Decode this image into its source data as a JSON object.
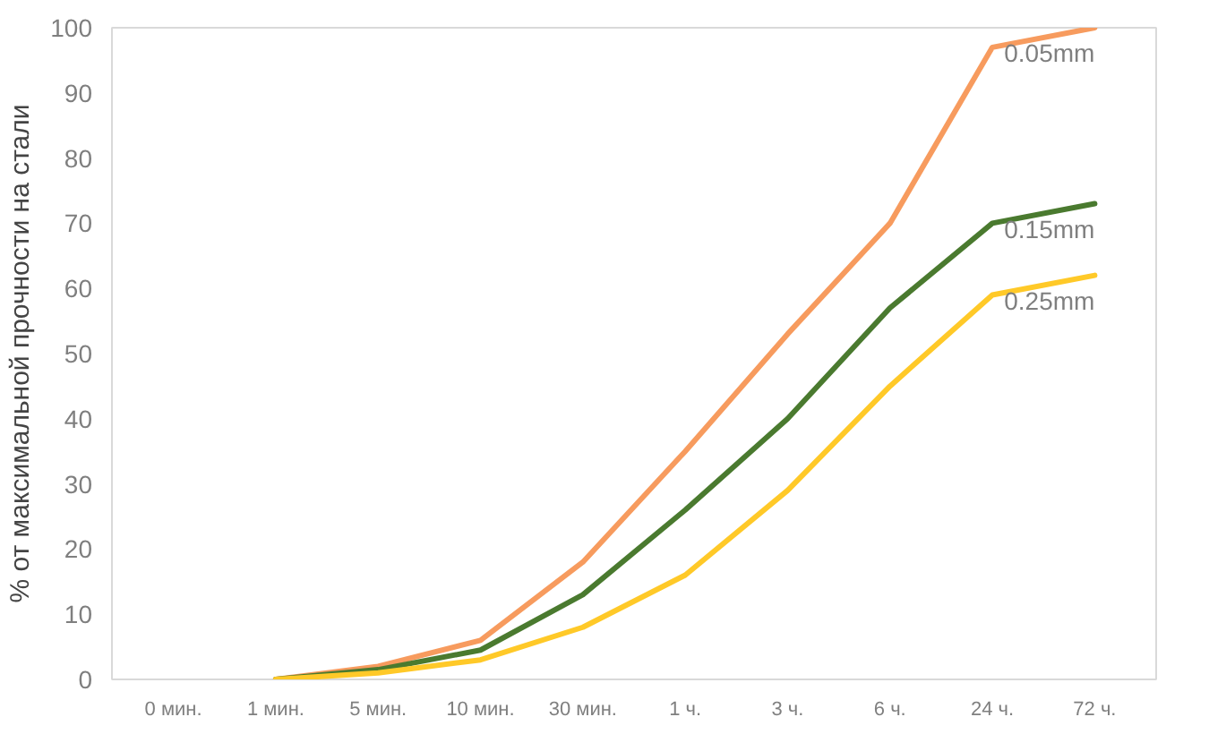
{
  "chart_data": {
    "type": "line",
    "ylabel": "% от максимальной прочности на стали",
    "categories": [
      "0 мин.",
      "1 мин.",
      "5 мин.",
      "10 мин.",
      "30 мин.",
      "1 ч.",
      "3 ч.",
      "6 ч.",
      "24 ч.",
      "72 ч."
    ],
    "ylim": [
      0,
      100
    ],
    "yticks": [
      0,
      10,
      20,
      30,
      40,
      50,
      60,
      70,
      80,
      90,
      100
    ],
    "grid": false,
    "legend": false,
    "series": [
      {
        "name": "0.05mm",
        "color": "#f79b5e",
        "values": [
          null,
          0,
          2,
          6,
          18,
          35,
          53,
          70,
          97,
          100
        ]
      },
      {
        "name": "0.15mm",
        "color": "#4a7a2f",
        "values": [
          null,
          0,
          1.5,
          4.5,
          13,
          26,
          40,
          57,
          70,
          73
        ]
      },
      {
        "name": "0.25mm",
        "color": "#ffc928",
        "values": [
          null,
          0,
          1,
          3,
          8,
          16,
          29,
          45,
          59,
          62
        ]
      }
    ]
  }
}
